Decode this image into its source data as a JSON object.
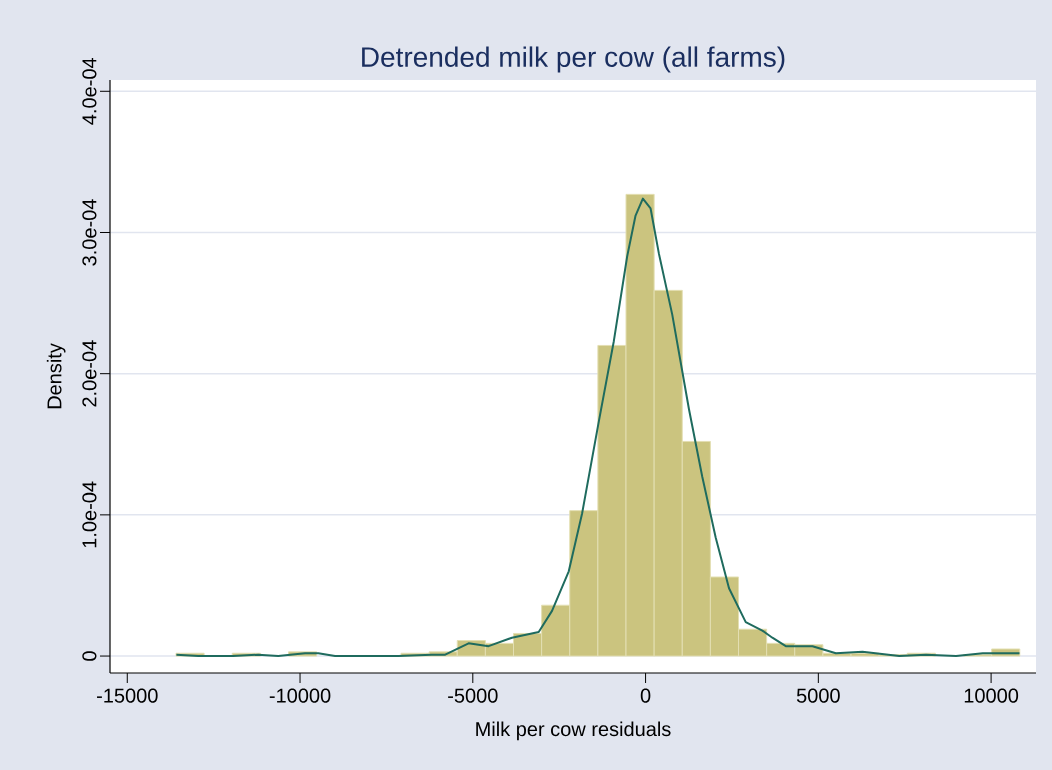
{
  "chart_data": {
    "type": "histogram",
    "title": "Detrended milk per cow (all farms)",
    "xlabel": "Milk per cow residuals",
    "ylabel": "Density",
    "bins": [
      -13590,
      -12776,
      -11962,
      -11148,
      -10334,
      -9520,
      -8706,
      -7892,
      -7078,
      -6264,
      -5450,
      -4636,
      -3822,
      -3008,
      -2194,
      -1380,
      -566,
      248,
      1062,
      1876,
      2690,
      3504,
      4318,
      5132,
      5946,
      6760,
      7574,
      8388,
      9202,
      10016,
      10830
    ],
    "values": [
      2e-06,
      0,
      2e-06,
      0,
      3e-06,
      0,
      0,
      0,
      2e-06,
      3e-06,
      1.1e-05,
      9e-06,
      1.6e-05,
      3.6e-05,
      0.000103,
      0.00022,
      0.000327,
      0.000259,
      0.000152,
      5.6e-05,
      1.9e-05,
      9e-06,
      8e-06,
      2e-06,
      2e-06,
      1e-06,
      2e-06,
      0,
      1e-06,
      5e-06
    ],
    "color": "#cbc47f",
    "series": [
      {
        "type": "line",
        "color": "#1f6b5e",
        "x": [
          -13578,
          -12949,
          -11934,
          -11210,
          -10630,
          -9856,
          -9470,
          -8987,
          -7151,
          -6186,
          -5798,
          -5122,
          -4543,
          -3867,
          -3093,
          -2707,
          -2223,
          -1837,
          -1354,
          -919,
          -533,
          -290,
          -78,
          145,
          386,
          771,
          1255,
          1641,
          2029,
          2415,
          2899,
          3380,
          3670,
          4058,
          4830,
          5508,
          6279,
          7343,
          8117,
          8987,
          9758,
          10822
        ],
        "values": [
          1e-06,
          0,
          0,
          1e-06,
          0,
          2e-06,
          2e-06,
          0,
          0,
          1e-06,
          1e-06,
          9e-06,
          7e-06,
          1.3e-05,
          1.7e-05,
          3.2e-05,
          6e-05,
          0.000101,
          0.000166,
          0.000223,
          0.000283,
          0.000312,
          0.000324,
          0.000317,
          0.000285,
          0.000242,
          0.000175,
          0.000127,
          8.4e-05,
          4.8e-05,
          2.4e-05,
          1.8e-05,
          1.3e-05,
          7e-06,
          7e-06,
          2e-06,
          3e-06,
          0,
          1e-06,
          0,
          2e-06,
          2e-06
        ]
      }
    ],
    "xlim": [
      -15500,
      11300
    ],
    "ylim": [
      -1.2e-05,
      0.000408
    ],
    "xticks": [
      -15000,
      -10000,
      -5000,
      0,
      5000,
      10000
    ],
    "yticks": [
      0,
      {
        "value": 0.0001,
        "label": "1.0e-04"
      },
      {
        "value": 0.0002,
        "label": "2.0e-04"
      },
      {
        "value": 0.0003,
        "label": "3.0e-04"
      },
      {
        "value": 0.0004,
        "label": "4.0e-04"
      }
    ],
    "grid": "y"
  }
}
